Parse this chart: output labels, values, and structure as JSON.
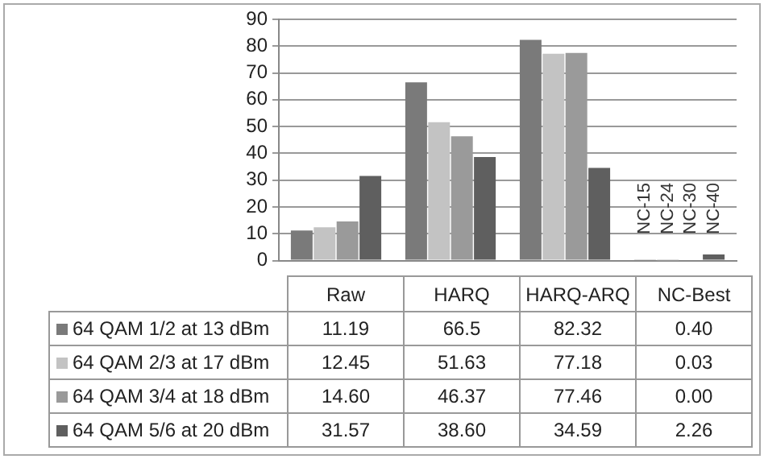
{
  "chart_data": {
    "type": "bar",
    "categories": [
      "Raw",
      "HARQ",
      "HARQ-ARQ",
      "NC-Best"
    ],
    "series": [
      {
        "name": "64 QAM 1/2 at 13 dBm",
        "color": "#7a7a7a",
        "values": [
          11.19,
          66.5,
          82.32,
          0.4
        ],
        "value_labels": [
          "11.19",
          "66.5",
          "82.32",
          "0.40"
        ]
      },
      {
        "name": "64 QAM 2/3 at 17 dBm",
        "color": "#c3c3c3",
        "values": [
          12.45,
          51.63,
          77.18,
          0.03
        ],
        "value_labels": [
          "12.45",
          "51.63",
          "77.18",
          "0.03"
        ]
      },
      {
        "name": "64 QAM 3/4 at 18 dBm",
        "color": "#9a9a9a",
        "values": [
          14.6,
          46.37,
          77.46,
          0.0
        ],
        "value_labels": [
          "14.60",
          "46.37",
          "77.46",
          "0.00"
        ]
      },
      {
        "name": "64 QAM 5/6 at 20 dBm",
        "color": "#5f5f5f",
        "values": [
          31.57,
          38.6,
          34.59,
          2.26
        ],
        "value_labels": [
          "31.57",
          "38.60",
          "34.59",
          "2.26"
        ]
      }
    ],
    "ylim": [
      0,
      90
    ],
    "yticks": [
      0,
      10,
      20,
      30,
      40,
      50,
      60,
      70,
      80,
      90
    ],
    "grid": "y",
    "legend": "bottom",
    "annotations": [
      "NC-15",
      "NC-24",
      "NC-30",
      "NC-40"
    ]
  }
}
